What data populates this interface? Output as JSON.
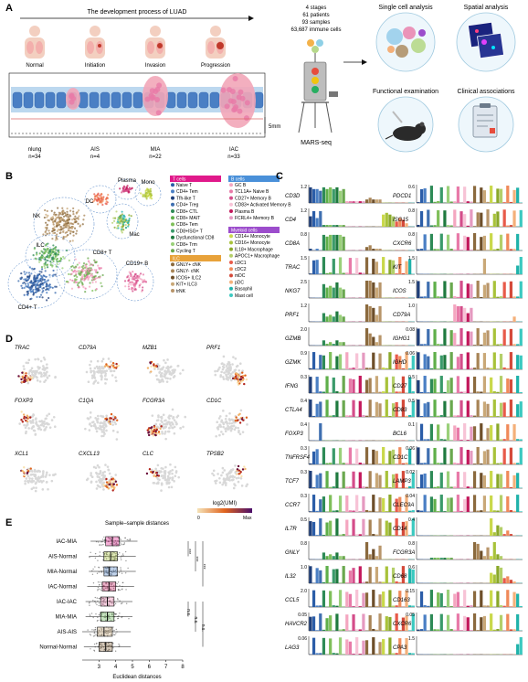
{
  "panels": {
    "a": "A",
    "b": "B",
    "c": "C",
    "d": "D",
    "e": "E"
  },
  "panel_a": {
    "process_title": "The development process of LUAD",
    "stages": [
      {
        "name": "Normal"
      },
      {
        "name": "Initiation"
      },
      {
        "name": "Invasion"
      },
      {
        "name": "Progression"
      }
    ],
    "groups": [
      {
        "name": "nlung",
        "n": "n=34"
      },
      {
        "name": "AIS",
        "n": "n=4"
      },
      {
        "name": "MIA",
        "n": "n=22"
      },
      {
        "name": "IAC",
        "n": "n=33"
      }
    ],
    "scale": "5mm",
    "summary": [
      "4 stages",
      "61 patients",
      "93 samples",
      "63,687 immune cells"
    ],
    "platform": "MARS-seq",
    "analyses": [
      "Single cell analysis",
      "Spatial analysis",
      "Functional examination",
      "Clinical associations"
    ]
  },
  "panel_b": {
    "labels": [
      "Plasma",
      "Mono",
      "DC",
      "NK",
      "Mac",
      "ILC",
      "CD8+ T",
      "CD19+ B",
      "CD4+ T"
    ],
    "legend": [
      {
        "header": "T cells",
        "color": "#e0198a",
        "items": [
          {
            "t": "Naive T",
            "c": "#2b5da8"
          },
          {
            "t": "CD4+ Tem",
            "c": "#4a7fc4"
          },
          {
            "t": "Tfh-like T",
            "c": "#1f3f7a"
          },
          {
            "t": "CD4+ Treg",
            "c": "#3f6fb0"
          },
          {
            "t": "CD8+ CTL",
            "c": "#2e8b57"
          },
          {
            "t": "CD8+ MAIT",
            "c": "#5faf4a"
          },
          {
            "t": "CD8+ Tem",
            "c": "#7fbf5a"
          },
          {
            "t": "CD8+ISG+ T",
            "c": "#3a9a6a"
          },
          {
            "t": "Dysfunctional CD8",
            "c": "#1f7a3f"
          },
          {
            "t": "CD8+ Trm",
            "c": "#9ad07a"
          },
          {
            "t": "Cycling T",
            "c": "#6aa84f"
          }
        ]
      },
      {
        "header": "B cells",
        "color": "#4a90d9",
        "items": [
          {
            "t": "GC B",
            "c": "#f4a6c0"
          },
          {
            "t": "TCL1A+ Naive B",
            "c": "#e87aa8"
          },
          {
            "t": "CD27+ Memory B",
            "c": "#d44d8a"
          },
          {
            "t": "CD83+ Activated Memory B",
            "c": "#f7c3d6"
          },
          {
            "t": "Plasma B",
            "c": "#c2185b"
          },
          {
            "t": "FCRL4+ Memory B",
            "c": "#e59ac0"
          }
        ]
      },
      {
        "header": "ILC",
        "color": "#e8a23a",
        "items": [
          {
            "t": "GNLY+ cNK",
            "c": "#8b6a3e"
          },
          {
            "t": "GNLY- cNK",
            "c": "#a88456"
          },
          {
            "t": "ICOS+ ILC2",
            "c": "#6e4f2a"
          },
          {
            "t": "KIT+ ILC3",
            "c": "#c9a878"
          },
          {
            "t": "trNK",
            "c": "#b8956a"
          }
        ]
      },
      {
        "header": "Myeloid cells",
        "color": "#9c4dcc",
        "items": [
          {
            "t": "CD14+ Monocyte",
            "c": "#c9d84a"
          },
          {
            "t": "CD16+ Monocyte",
            "c": "#a8c23a"
          },
          {
            "t": "IL18+ Macrophage",
            "c": "#8aa82a"
          },
          {
            "t": "APOC1+ Macrophage",
            "c": "#b4cf6a"
          },
          {
            "t": "cDC1",
            "c": "#e85a4a"
          },
          {
            "t": "cDC2",
            "c": "#f08a5a"
          },
          {
            "t": "mDC",
            "c": "#d44a3a"
          },
          {
            "t": "pDC",
            "c": "#f4b07a"
          },
          {
            "t": "Basophil",
            "c": "#20b2aa"
          },
          {
            "t": "Mast cell",
            "c": "#3cc9c0"
          }
        ]
      }
    ]
  },
  "panel_c": {
    "genes_left": [
      "CD3D",
      "CD4",
      "CD8A",
      "TRAC",
      "NKG7",
      "PRF1",
      "GZMB",
      "GZMK",
      "IFNG",
      "CTLA4",
      "FOXP3",
      "TNFRSF4",
      "TCF7",
      "CCR7",
      "IL7R",
      "GNLY",
      "IL32",
      "CCL5",
      "HAVCR2",
      "LAG3"
    ],
    "max_left": [
      "1.2",
      "1.2",
      "0.8",
      "1.5",
      "2.5",
      "1.2",
      "2.0",
      "0.9",
      "0.3",
      "0.4",
      "0.4",
      "0.3",
      "0.3",
      "0.3",
      "0.5",
      "0.8",
      "1.0",
      "2.0",
      "0.05",
      "0.06"
    ],
    "genes_right": [
      "PDCD1",
      "ISG15",
      "CXCR6",
      "KIT",
      "ICOS",
      "CD79A",
      "IGHG1",
      "IGHD",
      "CD27",
      "CD83",
      "BCL6",
      "CD1C",
      "LAMP3",
      "CLEC9A",
      "CD14",
      "FCGR3A",
      "CD68",
      "CD163",
      "CXCR6",
      "CPA3"
    ],
    "max_right": [
      "0.6",
      "0.8",
      "0.8",
      "1.5",
      "1.5",
      "1.0",
      "0.08",
      "0.06",
      "0.5",
      "0.5",
      "0.1",
      "0.06",
      "0.02",
      "0.04",
      "0.4",
      "0.8",
      "0.6",
      "0.15",
      "0.05",
      "1.5"
    ]
  },
  "panel_d": {
    "genes": [
      "TRAC",
      "CD79A",
      "MZB1",
      "PRF1",
      "FOXP3",
      "C1QA",
      "FCGR3A",
      "CD1C",
      "XCL1",
      "CXCL13",
      "CLC",
      "TPSB2"
    ],
    "colorbar_label": "log2(UMI)",
    "colorbar_min": "0",
    "colorbar_max": "Max"
  },
  "panel_e": {
    "title": "Sample–sample distances",
    "xlabel": "Euclidean distances",
    "categories": [
      "IAC-MIA",
      "AIS-Normal",
      "MIA-Normal",
      "IAC-Normal",
      "IAC-IAC",
      "MIA-MIA",
      "AIS-AIS",
      "Normal-Normal"
    ],
    "ticks": [
      "3",
      "4",
      "5",
      "6",
      "7",
      "8"
    ],
    "sig_labels": [
      "***",
      "***",
      "***",
      "n.s.",
      "n.s.",
      "n.s."
    ]
  },
  "chart_data": [
    {
      "type": "bar",
      "title": "",
      "xlabel": "",
      "ylabel": "",
      "categories": [
        "CD3D",
        "CD4",
        "CD8A",
        "TRAC",
        "NKG7",
        "PRF1",
        "GZMB",
        "GZMK",
        "IFNG",
        "CTLA4",
        "FOXP3",
        "TNFRSF4",
        "TCF7",
        "CCR7",
        "IL7R",
        "GNLY",
        "IL32",
        "CCL5",
        "HAVCR2",
        "LAG3",
        "PDCD1",
        "ISG15",
        "CXCR6",
        "KIT",
        "ICOS",
        "CD79A",
        "IGHG1",
        "IGHD",
        "CD27",
        "CD83",
        "BCL6",
        "CD1C",
        "LAMP3",
        "CLEC9A",
        "CD14",
        "FCGR3A",
        "CD68",
        "CD163",
        "CXCR6",
        "CPA3"
      ],
      "axis_max": [
        1.2,
        1.2,
        0.8,
        1.5,
        2.5,
        1.2,
        2.0,
        0.9,
        0.3,
        0.4,
        0.4,
        0.3,
        0.3,
        0.3,
        0.5,
        0.8,
        1.0,
        2.0,
        0.05,
        0.06,
        0.6,
        0.8,
        0.8,
        1.5,
        1.5,
        1.0,
        0.08,
        0.06,
        0.5,
        0.5,
        0.1,
        0.06,
        0.02,
        0.04,
        0.4,
        0.8,
        0.6,
        0.15,
        0.05,
        1.5
      ]
    },
    {
      "type": "bar",
      "title": "Sample–sample distances",
      "xlabel": "Euclidean distances",
      "ylabel": "",
      "categories": [
        "IAC-MIA",
        "AIS-Normal",
        "MIA-Normal",
        "IAC-Normal",
        "IAC-IAC",
        "MIA-MIA",
        "AIS-AIS",
        "Normal-Normal"
      ],
      "series": [
        {
          "name": "q1",
          "values": [
            3.4,
            3.3,
            3.3,
            3.2,
            3.1,
            3.1,
            2.9,
            3.0
          ]
        },
        {
          "name": "median",
          "values": [
            3.8,
            3.7,
            3.6,
            3.6,
            3.5,
            3.5,
            3.3,
            3.4
          ]
        },
        {
          "name": "q3",
          "values": [
            4.2,
            4.1,
            4.1,
            4.0,
            3.9,
            3.9,
            3.8,
            3.8
          ]
        }
      ],
      "box_colors": [
        "#e0198a",
        "#a8c23a",
        "#4a7fc4",
        "#c2185b",
        "#e87aa8",
        "#5faf4a",
        "#c9a878",
        "#8b6a3e"
      ],
      "xlim": [
        2,
        8
      ]
    }
  ]
}
